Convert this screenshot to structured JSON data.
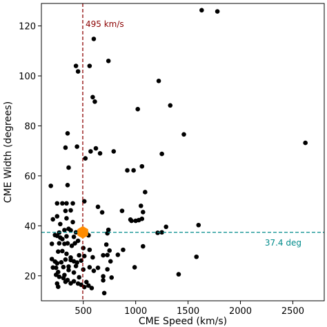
{
  "chart_data": {
    "type": "scatter",
    "title": "",
    "xlabel": "CME Speed (km/s)",
    "ylabel": "CME Width (degrees)",
    "xlim": [
      100,
      2800
    ],
    "ylim": [
      10,
      129
    ],
    "xticks": [
      500,
      1000,
      1500,
      2000,
      2500
    ],
    "yticks": [
      20,
      40,
      60,
      80,
      100,
      120
    ],
    "grid": false,
    "point_color": "#000000",
    "points": [
      [
        1630,
        126.3
      ],
      [
        1780,
        125.8
      ],
      [
        600,
        114.8
      ],
      [
        430,
        104
      ],
      [
        450,
        101.8
      ],
      [
        560,
        104
      ],
      [
        740,
        106
      ],
      [
        1220,
        98
      ],
      [
        590,
        91.5
      ],
      [
        610,
        89.7
      ],
      [
        1020,
        86.7
      ],
      [
        1330,
        88.2
      ],
      [
        1460,
        76.6
      ],
      [
        2620,
        73.2
      ],
      [
        350,
        77
      ],
      [
        330,
        71.3
      ],
      [
        440,
        71.7
      ],
      [
        520,
        67
      ],
      [
        570,
        69.8
      ],
      [
        620,
        71
      ],
      [
        660,
        69
      ],
      [
        790,
        69.8
      ],
      [
        1250,
        68.8
      ],
      [
        360,
        63.3
      ],
      [
        920,
        62.2
      ],
      [
        980,
        62.2
      ],
      [
        1060,
        63.8
      ],
      [
        190,
        56
      ],
      [
        350,
        56.3
      ],
      [
        1090,
        53.5
      ],
      [
        250,
        49
      ],
      [
        300,
        49
      ],
      [
        340,
        49
      ],
      [
        400,
        49
      ],
      [
        510,
        49.8
      ],
      [
        640,
        47.6
      ],
      [
        870,
        46
      ],
      [
        330,
        46
      ],
      [
        380,
        46.2
      ],
      [
        250,
        43.8
      ],
      [
        210,
        42.6
      ],
      [
        340,
        43
      ],
      [
        400,
        41.5
      ],
      [
        680,
        45.4
      ],
      [
        1050,
        48
      ],
      [
        1070,
        45.5
      ],
      [
        950,
        42.5
      ],
      [
        960,
        42
      ],
      [
        1000,
        42
      ],
      [
        1030,
        42.3
      ],
      [
        1060,
        42.8
      ],
      [
        1290,
        39.6
      ],
      [
        1600,
        40.3
      ],
      [
        280,
        40.7
      ],
      [
        320,
        38.3
      ],
      [
        360,
        38.8
      ],
      [
        380,
        38.2
      ],
      [
        270,
        37.3
      ],
      [
        430,
        37.4
      ],
      [
        740,
        38.4
      ],
      [
        1210,
        37.2
      ],
      [
        1250,
        37.4
      ],
      [
        230,
        36.3
      ],
      [
        250,
        36
      ],
      [
        280,
        35.3
      ],
      [
        300,
        34.7
      ],
      [
        340,
        35.8
      ],
      [
        350,
        33
      ],
      [
        410,
        35.6
      ],
      [
        450,
        34
      ],
      [
        550,
        36.2
      ],
      [
        730,
        37
      ],
      [
        270,
        33
      ],
      [
        320,
        32.8
      ],
      [
        390,
        32
      ],
      [
        420,
        33
      ],
      [
        500,
        31.1
      ],
      [
        560,
        30.4
      ],
      [
        720,
        32.5
      ],
      [
        750,
        30.1
      ],
      [
        880,
        30.4
      ],
      [
        1070,
        31.8
      ],
      [
        200,
        32.8
      ],
      [
        260,
        29.7
      ],
      [
        300,
        29.9
      ],
      [
        340,
        28.8
      ],
      [
        380,
        27.3
      ],
      [
        460,
        28.2
      ],
      [
        510,
        27.9
      ],
      [
        590,
        27.4
      ],
      [
        690,
        28.2
      ],
      [
        730,
        28.3
      ],
      [
        830,
        28.4
      ],
      [
        200,
        26.7
      ],
      [
        230,
        25.7
      ],
      [
        250,
        25
      ],
      [
        290,
        25.4
      ],
      [
        330,
        26.5
      ],
      [
        380,
        26.3
      ],
      [
        410,
        25.8
      ],
      [
        440,
        25.3
      ],
      [
        480,
        26.1
      ],
      [
        760,
        25.8
      ],
      [
        1580,
        27.6
      ],
      [
        210,
        23.3
      ],
      [
        240,
        23.2
      ],
      [
        310,
        23.5
      ],
      [
        360,
        23.7
      ],
      [
        430,
        23.9
      ],
      [
        500,
        22.5
      ],
      [
        560,
        23.4
      ],
      [
        640,
        23.2
      ],
      [
        990,
        23.4
      ],
      [
        260,
        21.5
      ],
      [
        320,
        20.3
      ],
      [
        360,
        22.3
      ],
      [
        410,
        21.3
      ],
      [
        600,
        22
      ],
      [
        730,
        22.6
      ],
      [
        1410,
        20.6
      ],
      [
        240,
        20.4
      ],
      [
        270,
        19.6
      ],
      [
        310,
        19.1
      ],
      [
        350,
        18.3
      ],
      [
        380,
        17
      ],
      [
        460,
        19.4
      ],
      [
        690,
        19.8
      ],
      [
        770,
        19.3
      ],
      [
        690,
        18.2
      ],
      [
        330,
        17.6
      ],
      [
        250,
        16.9
      ],
      [
        410,
        17.8
      ],
      [
        450,
        16.9
      ],
      [
        480,
        16.4
      ],
      [
        530,
        17.5
      ],
      [
        550,
        16.1
      ],
      [
        260,
        15.6
      ],
      [
        510,
        15.5
      ],
      [
        580,
        15.1
      ],
      [
        700,
        13.1
      ]
    ],
    "highlight_point": {
      "x": 495,
      "y": 37.4,
      "color": "#ff8c00",
      "marker": "hexagon"
    },
    "reference_lines": [
      {
        "orientation": "vertical",
        "value": 495,
        "label": "495 km/s",
        "color": "#8b0000",
        "style": "dashed"
      },
      {
        "orientation": "horizontal",
        "value": 37.4,
        "label": "37.4 deg",
        "color": "#008b8b",
        "style": "dashed"
      }
    ]
  }
}
